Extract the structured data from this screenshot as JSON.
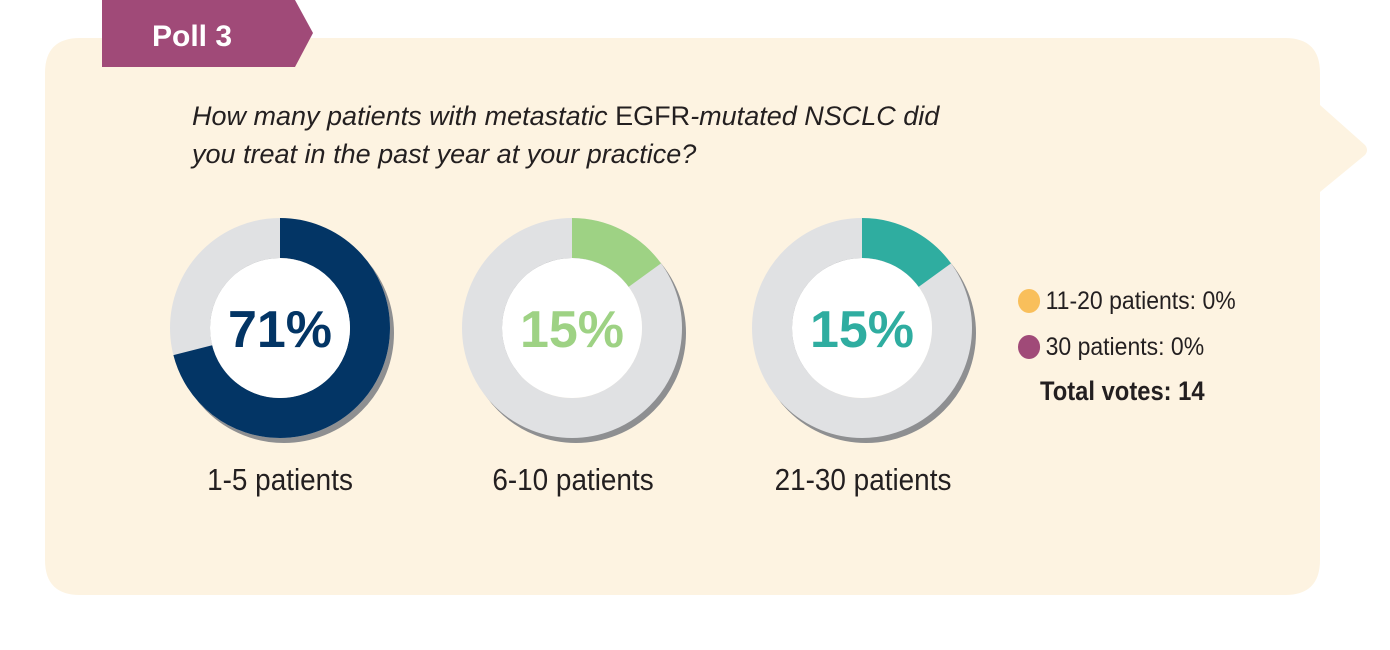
{
  "poll": {
    "tag": "Poll 3",
    "question_part1": "How many patients with metastatic ",
    "question_upright": "EGFR",
    "question_part2": "-mutated NSCLC did you treat in the past year at your practice?"
  },
  "colors": {
    "tag": "#a04a78",
    "bubble": "#fdf3e1",
    "track": "#e0e1e3",
    "shadow": "#8e8f91",
    "navy": "#033565",
    "light_green": "#9ed284",
    "teal": "#2fada0",
    "orange": "#f9bf5b",
    "plum": "#a04a78"
  },
  "chart_data": {
    "type": "donut",
    "title": "How many patients with metastatic EGFR-mutated NSCLC did you treat in the past year at your practice?",
    "unit": "%",
    "categories": [
      "1-5 patients",
      "6-10 patients",
      "21-30 patients"
    ],
    "values": [
      71,
      15,
      15
    ],
    "value_labels": [
      "71%",
      "15%",
      "15%"
    ],
    "series_colors": [
      "#033565",
      "#9ed284",
      "#2fada0"
    ],
    "other_categories": [
      {
        "label": "11-20 patients: 0%",
        "value": 0,
        "color": "#f9bf5b"
      },
      {
        "label": "30 patients: 0%",
        "value": 0,
        "color": "#a04a78"
      }
    ],
    "total_votes_label": "Total votes: 14",
    "total_votes": 14
  }
}
